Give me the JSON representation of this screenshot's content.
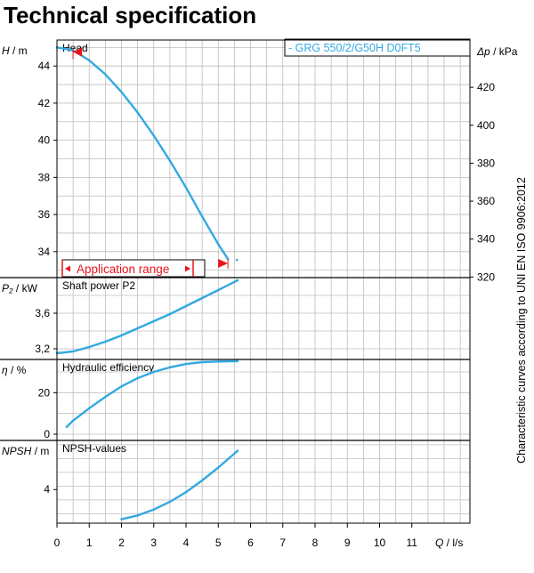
{
  "page": {
    "title": "Technical specification",
    "side_note": "Characteristic curves according to UNI EN ISO 9906:2012",
    "model_label": "- GRG 550/2/G50H D0FT5",
    "application_range": "Application range"
  },
  "colors": {
    "curve": "#33a9e0",
    "range": "#e8141e",
    "grid": "#bdbdbd",
    "axis": "#000000"
  },
  "chart_data": [
    {
      "type": "line",
      "title": "Head",
      "ylabel": "H / m",
      "ylabel_parts": {
        "sym": "H",
        "unit": "/ m"
      },
      "ylabel_right": "Δp / kPa",
      "ylabel_right_parts": {
        "sym": "Δp",
        "unit": "/ kPa"
      },
      "ylim": [
        32.6,
        45.4
      ],
      "yticks": [
        "34",
        "36",
        "38",
        "40",
        "42",
        "44"
      ],
      "ylim_right": [
        319.7,
        444.9
      ],
      "yticks_right": [
        "320",
        "340",
        "360",
        "380",
        "400",
        "420"
      ],
      "x": [
        0.0,
        0.5,
        1.0,
        1.5,
        2.0,
        2.5,
        3.0,
        3.5,
        4.0,
        4.5,
        5.0,
        5.3
      ],
      "y": [
        45.0,
        44.85,
        44.3,
        43.55,
        42.6,
        41.5,
        40.25,
        38.9,
        37.45,
        35.9,
        34.4,
        33.6
      ],
      "dashed_tail": {
        "x": [
          5.55,
          5.6
        ],
        "y": [
          33.6,
          33.5
        ]
      },
      "application_range": [
        0.5,
        5.3
      ]
    },
    {
      "type": "line",
      "title": "Shaft power P2",
      "ylabel": "P₂ / kW",
      "ylabel_parts": {
        "sym": "P₂",
        "unit": "/ kW"
      },
      "ylim": [
        3.08,
        4.0
      ],
      "yticks": [
        "3,2",
        "3,6"
      ],
      "x": [
        0.0,
        0.5,
        1.0,
        1.5,
        2.0,
        2.5,
        3.0,
        3.5,
        4.0,
        4.5,
        5.0,
        5.6
      ],
      "y": [
        3.15,
        3.17,
        3.22,
        3.28,
        3.35,
        3.43,
        3.51,
        3.59,
        3.68,
        3.77,
        3.86,
        3.97
      ]
    },
    {
      "type": "line",
      "title": "Hydraulic efficiency",
      "ylabel": "η / %",
      "ylabel_parts": {
        "sym": "η",
        "unit": "/ %"
      },
      "ylim": [
        -3.0,
        36.0
      ],
      "yticks": [
        "0",
        "20"
      ],
      "x": [
        0.3,
        0.5,
        1.0,
        1.5,
        2.0,
        2.5,
        3.0,
        3.5,
        4.0,
        4.5,
        5.0,
        5.6
      ],
      "y": [
        3.5,
        6.5,
        12.5,
        18.0,
        23.0,
        27.0,
        30.0,
        32.2,
        33.8,
        34.7,
        35.0,
        35.2
      ]
    },
    {
      "type": "line",
      "title": "NPSH-values",
      "ylabel": "NPSH / m",
      "ylabel_parts": {
        "sym": "NPSH",
        "unit": "/ m"
      },
      "ylim": [
        1.4,
        7.8
      ],
      "yticks": [
        "4"
      ],
      "x": [
        2.0,
        2.5,
        3.0,
        3.5,
        4.0,
        4.5,
        5.0,
        5.6
      ],
      "y": [
        1.7,
        2.0,
        2.45,
        3.05,
        3.8,
        4.7,
        5.7,
        7.0
      ]
    }
  ],
  "x_axis": {
    "label": "Q / l/s",
    "label_parts": {
      "sym": "Q",
      "unit": "/ l/s"
    },
    "xlim": [
      0,
      12.8
    ],
    "ticks": [
      "0",
      "1",
      "2",
      "3",
      "4",
      "5",
      "6",
      "7",
      "8",
      "9",
      "10",
      "11"
    ]
  }
}
